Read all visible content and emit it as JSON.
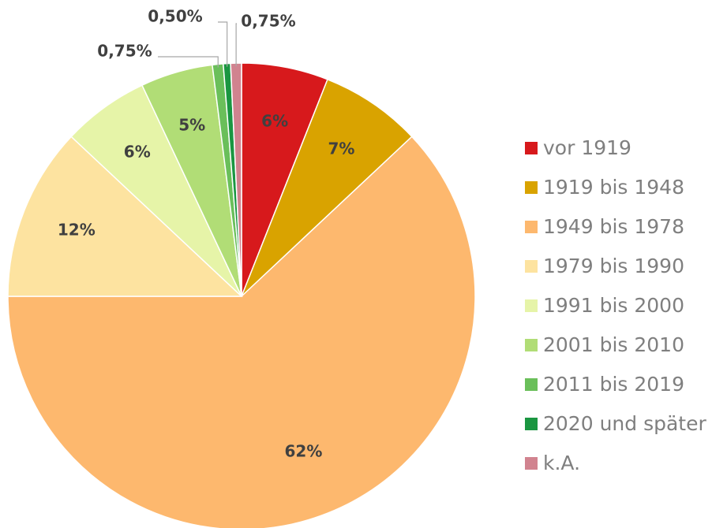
{
  "chart_data": {
    "type": "pie",
    "categories": [
      "vor 1919",
      "1919 bis 1948",
      "1949 bis 1978",
      "1979 bis 1990",
      "1991 bis 2000",
      "2001 bis 2010",
      "2011 bis 2019",
      "2020 und später",
      "k.A."
    ],
    "values": [
      6,
      7,
      62,
      12,
      6,
      5,
      0.75,
      0.5,
      0.75
    ],
    "value_labels": [
      "6%",
      "7%",
      "62%",
      "12%",
      "6%",
      "5%",
      "0,75%",
      "0,50%",
      "0,75%"
    ],
    "colors": [
      "#d7191c",
      "#d9a300",
      "#fdb86e",
      "#fde3a0",
      "#e6f4a8",
      "#b1dd76",
      "#6abf5a",
      "#1a9641",
      "#d1838f"
    ],
    "legend": "right"
  }
}
